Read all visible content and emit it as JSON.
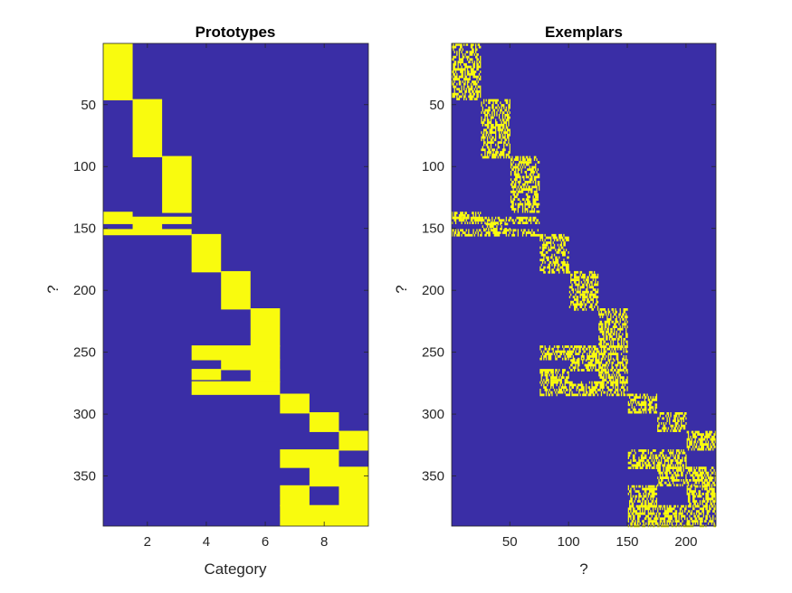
{
  "colors": {
    "background": "#3a2ea6",
    "active": "#f9fb0e",
    "axis": "#262626"
  },
  "chart_data": [
    {
      "type": "heatmap",
      "title": "Prototypes",
      "xlabel": "Category",
      "ylabel": "?",
      "xlim": [
        0.5,
        9.5
      ],
      "ylim": [
        0.5,
        390.5
      ],
      "xticks": [
        2,
        4,
        6,
        8
      ],
      "yticks": [
        50,
        100,
        150,
        200,
        250,
        300,
        350
      ],
      "cells": [
        {
          "x": [
            1,
            1
          ],
          "y": [
            1,
            46
          ]
        },
        {
          "x": [
            2,
            2
          ],
          "y": [
            46,
            92
          ]
        },
        {
          "x": [
            3,
            3
          ],
          "y": [
            92,
            137
          ]
        },
        {
          "x": [
            1,
            1
          ],
          "y": [
            137,
            141
          ]
        },
        {
          "x": [
            1,
            3
          ],
          "y": [
            141,
            146
          ]
        },
        {
          "x": [
            2,
            2
          ],
          "y": [
            146,
            151
          ]
        },
        {
          "x": [
            1,
            3
          ],
          "y": [
            151,
            155
          ]
        },
        {
          "x": [
            4,
            4
          ],
          "y": [
            155,
            185
          ]
        },
        {
          "x": [
            5,
            5
          ],
          "y": [
            185,
            215
          ]
        },
        {
          "x": [
            6,
            6
          ],
          "y": [
            215,
            245
          ]
        },
        {
          "x": [
            4,
            6
          ],
          "y": [
            245,
            256
          ]
        },
        {
          "x": [
            5,
            6
          ],
          "y": [
            256,
            264
          ]
        },
        {
          "x": [
            4,
            4
          ],
          "y": [
            264,
            272
          ]
        },
        {
          "x": [
            6,
            6
          ],
          "y": [
            264,
            274
          ]
        },
        {
          "x": [
            4,
            6
          ],
          "y": [
            274,
            284
          ]
        },
        {
          "x": [
            7,
            7
          ],
          "y": [
            284,
            299
          ]
        },
        {
          "x": [
            8,
            8
          ],
          "y": [
            299,
            314
          ]
        },
        {
          "x": [
            9,
            9
          ],
          "y": [
            314,
            329
          ]
        },
        {
          "x": [
            7,
            8
          ],
          "y": [
            329,
            343
          ]
        },
        {
          "x": [
            8,
            9
          ],
          "y": [
            343,
            358
          ]
        },
        {
          "x": [
            7,
            7
          ],
          "y": [
            358,
            374
          ]
        },
        {
          "x": [
            9,
            9
          ],
          "y": [
            358,
            374
          ]
        },
        {
          "x": [
            7,
            9
          ],
          "y": [
            374,
            390
          ]
        }
      ]
    },
    {
      "type": "heatmap",
      "title": "Exemplars",
      "xlabel": "?",
      "ylabel": "?",
      "xlim": [
        0.5,
        225.5
      ],
      "ylim": [
        0.5,
        390.5
      ],
      "xticks": [
        50,
        100,
        150,
        200
      ],
      "yticks": [
        50,
        100,
        150,
        200,
        250,
        300,
        350
      ],
      "noise_density": 0.55,
      "cells": [
        {
          "x": [
            1,
            25
          ],
          "y": [
            1,
            46
          ]
        },
        {
          "x": [
            26,
            50
          ],
          "y": [
            46,
            92
          ]
        },
        {
          "x": [
            51,
            75
          ],
          "y": [
            92,
            137
          ]
        },
        {
          "x": [
            1,
            25
          ],
          "y": [
            137,
            141
          ]
        },
        {
          "x": [
            1,
            75
          ],
          "y": [
            141,
            146
          ]
        },
        {
          "x": [
            26,
            50
          ],
          "y": [
            146,
            151
          ]
        },
        {
          "x": [
            1,
            75
          ],
          "y": [
            151,
            155
          ]
        },
        {
          "x": [
            76,
            100
          ],
          "y": [
            155,
            185
          ]
        },
        {
          "x": [
            101,
            125
          ],
          "y": [
            185,
            215
          ]
        },
        {
          "x": [
            126,
            150
          ],
          "y": [
            215,
            245
          ]
        },
        {
          "x": [
            76,
            150
          ],
          "y": [
            245,
            256
          ]
        },
        {
          "x": [
            101,
            150
          ],
          "y": [
            256,
            264
          ]
        },
        {
          "x": [
            76,
            100
          ],
          "y": [
            264,
            272
          ]
        },
        {
          "x": [
            126,
            150
          ],
          "y": [
            264,
            274
          ]
        },
        {
          "x": [
            76,
            150
          ],
          "y": [
            274,
            284
          ]
        },
        {
          "x": [
            151,
            175
          ],
          "y": [
            284,
            299
          ]
        },
        {
          "x": [
            176,
            200
          ],
          "y": [
            299,
            314
          ]
        },
        {
          "x": [
            201,
            225
          ],
          "y": [
            314,
            329
          ]
        },
        {
          "x": [
            151,
            200
          ],
          "y": [
            329,
            343
          ]
        },
        {
          "x": [
            176,
            225
          ],
          "y": [
            343,
            358
          ]
        },
        {
          "x": [
            151,
            175
          ],
          "y": [
            358,
            374
          ]
        },
        {
          "x": [
            201,
            225
          ],
          "y": [
            358,
            374
          ]
        },
        {
          "x": [
            151,
            225
          ],
          "y": [
            374,
            390
          ]
        }
      ]
    }
  ]
}
